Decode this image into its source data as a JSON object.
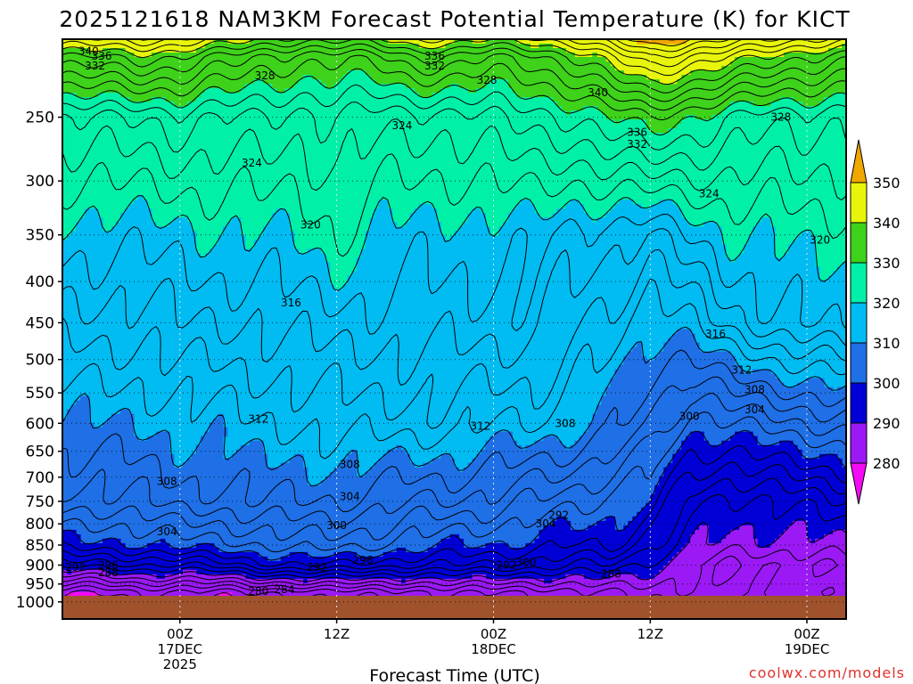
{
  "chart_data": {
    "type": "contour",
    "title": "2025121618 NAM3KM Forecast Potential Temperature (K) for KICT",
    "xlabel": "Forecast Time (UTC)",
    "ylabel": "",
    "credit": "coolwx.com/models",
    "y_axis": {
      "scale": "log-pressure",
      "ylim": [
        1050,
        200
      ],
      "ticks": [
        1000,
        950,
        900,
        850,
        800,
        750,
        700,
        650,
        600,
        550,
        500,
        450,
        400,
        350,
        300,
        250
      ],
      "tick_labels": [
        "1000",
        "950",
        "900",
        "850",
        "800",
        "750",
        "700",
        "650",
        "600",
        "550",
        "500",
        "450",
        "400",
        "350",
        "300",
        "250"
      ]
    },
    "x_axis": {
      "range_hours": [
        -9,
        51
      ],
      "ticks": [
        {
          "hour": 0,
          "lines": [
            "00Z",
            "17DEC",
            "2025"
          ]
        },
        {
          "hour": 12,
          "lines": [
            "12Z"
          ]
        },
        {
          "hour": 24,
          "lines": [
            "00Z",
            "18DEC"
          ]
        },
        {
          "hour": 36,
          "lines": [
            "12Z"
          ]
        },
        {
          "hour": 48,
          "lines": [
            "00Z",
            "19DEC"
          ]
        }
      ]
    },
    "colorbar": {
      "levels": [
        280,
        290,
        300,
        310,
        320,
        330,
        340,
        350
      ],
      "labels": [
        "280",
        "290",
        "300",
        "310",
        "320",
        "330",
        "340",
        "350"
      ],
      "colors": [
        "#9b19f5",
        "#0000d6",
        "#1f6fe6",
        "#00bcf2",
        "#00f0a8",
        "#3ed21a",
        "#e8f50a"
      ],
      "under_color": "#f50af5",
      "over_color": "#f0a800"
    },
    "ground_color": "#a0522d",
    "theta_anchor_hours": [
      -6,
      -3,
      0,
      3,
      6,
      9,
      12,
      15,
      18,
      21,
      24,
      27,
      30,
      33,
      36,
      39,
      42,
      45,
      48,
      51
    ],
    "theta_profiles": {
      "p975": [
        280,
        282,
        281,
        281,
        282,
        282,
        283,
        283,
        283,
        284,
        284,
        284,
        285,
        286,
        287,
        287,
        287,
        287,
        287,
        287
      ],
      "p900": [
        293,
        294,
        294,
        295,
        297,
        298,
        298,
        297,
        296,
        296,
        296,
        295,
        294,
        294,
        291,
        288,
        286,
        286,
        286,
        286
      ],
      "p850": [
        299,
        300,
        301,
        301,
        302,
        303,
        303,
        302,
        301,
        300,
        300,
        299,
        298,
        299,
        294,
        291,
        289,
        289,
        289,
        290
      ],
      "p750": [
        305,
        306,
        307,
        307,
        308,
        308,
        308,
        307,
        306,
        306,
        305,
        304,
        303,
        301,
        300,
        293,
        291,
        292,
        293,
        294
      ],
      "p600": [
        310,
        310,
        311,
        311,
        312,
        312,
        313,
        313,
        313,
        313,
        312,
        312,
        311,
        309,
        306,
        301,
        302,
        303,
        304,
        305
      ],
      "p450": [
        315,
        315,
        316,
        316,
        316,
        317,
        317,
        317,
        317,
        317,
        317,
        317,
        315,
        313,
        310,
        312,
        315,
        317,
        318,
        319
      ],
      "p350": [
        319,
        319,
        319,
        320,
        320,
        320,
        322,
        320,
        319,
        319,
        319,
        319,
        317,
        317,
        316,
        318,
        320,
        320,
        321,
        321
      ],
      "p250": [
        326,
        326,
        327,
        326,
        326,
        325,
        326,
        325,
        325,
        325,
        326,
        327,
        328,
        330,
        332,
        330,
        328,
        327,
        327,
        326
      ],
      "p210": [
        338,
        339,
        338,
        336,
        334,
        333,
        333,
        333,
        336,
        336,
        334,
        335,
        338,
        342,
        346,
        344,
        342,
        340,
        338,
        337
      ]
    },
    "contour_labels": [
      {
        "text": "340",
        "hour": -7.0,
        "p": 207
      },
      {
        "text": "336",
        "hour": -6.0,
        "p": 210
      },
      {
        "text": "332",
        "hour": -6.5,
        "p": 216
      },
      {
        "text": "328",
        "hour": 6.5,
        "p": 222
      },
      {
        "text": "336",
        "hour": 19.5,
        "p": 210
      },
      {
        "text": "332",
        "hour": 19.5,
        "p": 216
      },
      {
        "text": "328",
        "hour": 23.5,
        "p": 225
      },
      {
        "text": "324",
        "hour": 17.0,
        "p": 256
      },
      {
        "text": "324",
        "hour": 5.5,
        "p": 285
      },
      {
        "text": "340",
        "hour": 32.0,
        "p": 233
      },
      {
        "text": "336",
        "hour": 35.0,
        "p": 261
      },
      {
        "text": "332",
        "hour": 35.0,
        "p": 270
      },
      {
        "text": "328",
        "hour": 46.0,
        "p": 250
      },
      {
        "text": "324",
        "hour": 40.5,
        "p": 311
      },
      {
        "text": "320",
        "hour": 10.0,
        "p": 340
      },
      {
        "text": "320",
        "hour": 49.0,
        "p": 355
      },
      {
        "text": "316",
        "hour": 8.5,
        "p": 425
      },
      {
        "text": "316",
        "hour": 41.0,
        "p": 465
      },
      {
        "text": "312",
        "hour": 43.0,
        "p": 515
      },
      {
        "text": "308",
        "hour": 44.0,
        "p": 545
      },
      {
        "text": "304",
        "hour": 44.0,
        "p": 577
      },
      {
        "text": "312",
        "hour": 6.0,
        "p": 593
      },
      {
        "text": "312",
        "hour": 23.0,
        "p": 605
      },
      {
        "text": "308",
        "hour": 29.5,
        "p": 600
      },
      {
        "text": "300",
        "hour": 39.0,
        "p": 588
      },
      {
        "text": "308",
        "hour": 13.0,
        "p": 675
      },
      {
        "text": "308",
        "hour": -1.0,
        "p": 708
      },
      {
        "text": "304",
        "hour": 13.0,
        "p": 740
      },
      {
        "text": "304",
        "hour": -1.0,
        "p": 818
      },
      {
        "text": "300",
        "hour": 12.0,
        "p": 804
      },
      {
        "text": "304",
        "hour": 28.0,
        "p": 800
      },
      {
        "text": "292",
        "hour": 29.0,
        "p": 780
      },
      {
        "text": "296",
        "hour": 14.0,
        "p": 887
      },
      {
        "text": "292",
        "hour": 10.5,
        "p": 906
      },
      {
        "text": "292",
        "hour": 25.0,
        "p": 900
      },
      {
        "text": "300",
        "hour": 26.5,
        "p": 893
      },
      {
        "text": "292",
        "hour": -8.0,
        "p": 906
      },
      {
        "text": "296",
        "hour": -5.5,
        "p": 900
      },
      {
        "text": "288",
        "hour": -5.5,
        "p": 920
      },
      {
        "text": "280",
        "hour": 6.0,
        "p": 970
      },
      {
        "text": "284",
        "hour": 8.0,
        "p": 965
      },
      {
        "text": "288",
        "hour": 33.0,
        "p": 923
      }
    ]
  }
}
